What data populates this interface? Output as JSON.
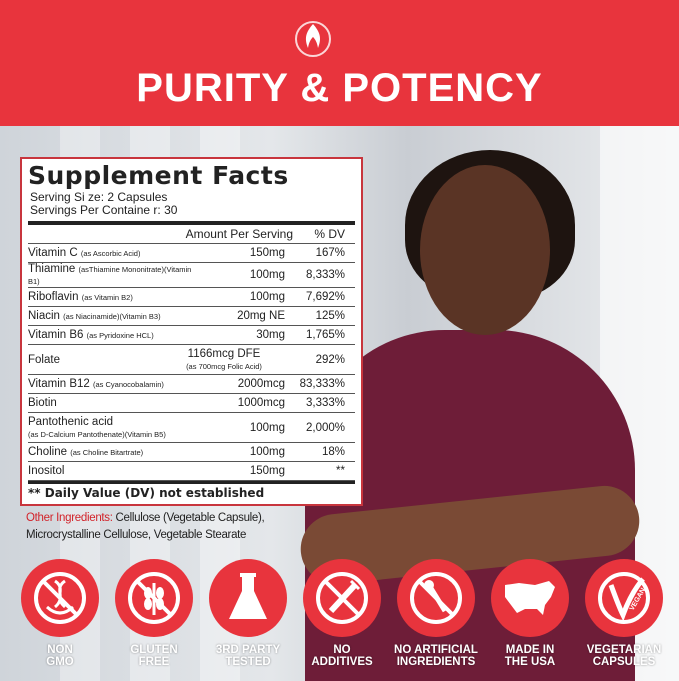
{
  "header": {
    "title": "PURITY & POTENCY",
    "logo_icon": "flame-logo-icon",
    "color": "#e8343d"
  },
  "facts": {
    "title": "Supplement Facts",
    "serving_size": "Serving Si ze:  2 Capsules",
    "servings_per_container": "Servings  Per Containe r:  30",
    "col_amount": "Amount Per Serving",
    "col_dv": "% DV",
    "rows": [
      {
        "name": "Vitamin C",
        "detail": "(as Ascorbic Acid)",
        "amount": "150mg",
        "dv": "167%"
      },
      {
        "name": "Thiamine",
        "detail": "(asThiamine Mononitrate)(Vitamin B1)",
        "amount": "100mg",
        "dv": "8,333%"
      },
      {
        "name": "Riboflavin",
        "detail": "(as Vitamin B2)",
        "amount": "100mg",
        "dv": "7,692%"
      },
      {
        "name": "Niacin",
        "detail": "(as Niacinamide)(Vitamin B3)",
        "amount": "20mg NE",
        "dv": "125%"
      },
      {
        "name": "Vitamin B6",
        "detail": "(as Pyridoxine HCL)",
        "amount": "30mg",
        "dv": "1,765%"
      },
      {
        "name": "Folate",
        "detail": "",
        "amount": "1166mcg DFE",
        "amount_detail": "(as 700mcg Folic Acid)",
        "dv": "292%"
      },
      {
        "name": "Vitamin B12",
        "detail": "(as Cyanocobalamin)",
        "amount": "2000mcg",
        "dv": "83,333%"
      },
      {
        "name": "Biotin",
        "detail": "",
        "amount": "1000mcg",
        "dv": "3,333%"
      },
      {
        "name": "Pantothenic acid",
        "detail": "(as D-Calcium Pantothenate)(Vitamin B5)",
        "amount": "100mg",
        "dv": "2,000%"
      },
      {
        "name": "Choline",
        "detail": "(as Choline Bitartrate)",
        "amount": "100mg",
        "dv": "18%"
      },
      {
        "name": "Inositol",
        "detail": "",
        "amount": "150mg",
        "dv": "**"
      }
    ],
    "footnote": "** Daily Value (DV) not established"
  },
  "other_ingredients": {
    "label": "Other Ingredients:",
    "line1": " Cellulose (Vegetable Capsule),",
    "line2": "Microcrystalline Cellulose, Vegetable Stearate"
  },
  "badges": [
    {
      "icon": "no-gmo-dna-icon",
      "line1": "NON",
      "line2": "GMO"
    },
    {
      "icon": "no-gluten-wheat-icon",
      "line1": "GLUTEN",
      "line2": "FREE"
    },
    {
      "icon": "flask-icon",
      "line1": "3RD PARTY",
      "line2": "TESTED"
    },
    {
      "icon": "no-additives-syringe-icon",
      "line1": "NO",
      "line2": "ADDITIVES"
    },
    {
      "icon": "no-artificial-dropper-icon",
      "line1": "NO ARTIFICIAL",
      "line2": "INGREDIENTS"
    },
    {
      "icon": "usa-map-icon",
      "line1": "MADE IN",
      "line2": "THE USA"
    },
    {
      "icon": "vegan-icon",
      "line1": "VEGETARIAN",
      "line2": "CAPSULES",
      "icon_text": "VEGAN"
    }
  ]
}
